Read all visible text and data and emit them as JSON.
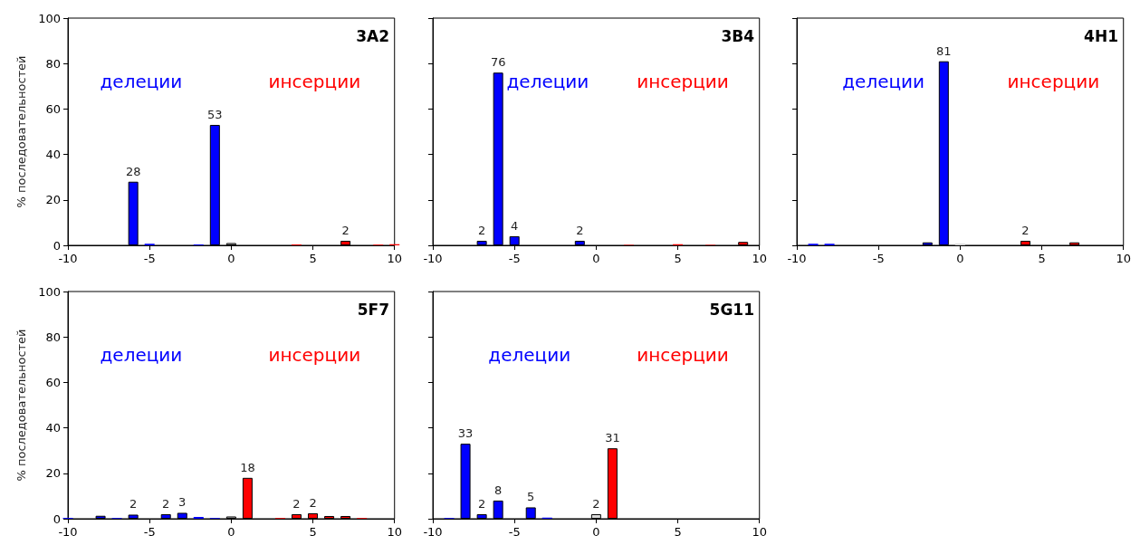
{
  "chart_data": [
    {
      "type": "bar",
      "title": "3A2",
      "ylabel": "% последовательностей",
      "annotations": [
        "делеции",
        "инсерции"
      ],
      "x": [
        -6,
        -5,
        -2,
        -1,
        0,
        4,
        7,
        9,
        10
      ],
      "values": [
        28,
        0.7,
        0.4,
        53,
        1,
        0.4,
        2,
        0.3,
        0.5
      ],
      "value_labels": [
        "28",
        null,
        null,
        "53",
        null,
        null,
        "2",
        null,
        null
      ],
      "colors": [
        "#0000ff",
        "#0000ff",
        "#0000ff",
        "#0000ff",
        "#d9d9d9",
        "#ff0000",
        "#ff0000",
        "#ff0000",
        "#ff0000"
      ],
      "xlim": [
        -10,
        10
      ],
      "xticks": [
        -10,
        -5,
        0,
        5,
        10
      ],
      "ylim": [
        0,
        100
      ],
      "yticks": [
        0,
        20,
        40,
        60,
        80,
        100
      ],
      "grid": false
    },
    {
      "type": "bar",
      "title": "3B4",
      "annotations": [
        "делеции",
        "инсерции"
      ],
      "x": [
        -7,
        -6,
        -5,
        -1,
        2,
        5,
        7,
        9
      ],
      "values": [
        2,
        76,
        4,
        2,
        0.2,
        0.5,
        0.2,
        1.5
      ],
      "value_labels": [
        "2",
        "76",
        "4",
        "2",
        null,
        null,
        null,
        null
      ],
      "colors": [
        "#0000ff",
        "#0000ff",
        "#0000ff",
        "#0000ff",
        "#ff0000",
        "#ff0000",
        "#ff0000",
        "#ff0000"
      ],
      "xlim": [
        -10,
        10
      ],
      "xticks": [
        -10,
        -5,
        0,
        5,
        10
      ],
      "ylim": [
        0,
        100
      ],
      "yticks": [
        0,
        20,
        40,
        60,
        80,
        100
      ],
      "grid": false,
      "tick_labels": "x"
    },
    {
      "type": "bar",
      "title": "4H1",
      "annotations": [
        "делеции",
        "инсерции"
      ],
      "x": [
        -9,
        -8,
        -2,
        -1,
        0,
        4,
        7
      ],
      "values": [
        0.7,
        0.7,
        1.3,
        81,
        0.8,
        2,
        1.3
      ],
      "value_labels": [
        null,
        null,
        null,
        "81",
        null,
        "2",
        null
      ],
      "colors": [
        "#0000ff",
        "#0000ff",
        "#0000ff",
        "#0000ff",
        "#d9d9d9",
        "#ff0000",
        "#ff0000"
      ],
      "xlim": [
        -10,
        10
      ],
      "xticks": [
        -10,
        -5,
        0,
        5,
        10
      ],
      "ylim": [
        0,
        100
      ],
      "yticks": [
        0,
        20,
        40,
        60,
        80,
        100
      ],
      "grid": false,
      "tick_labels": "x"
    },
    {
      "type": "bar",
      "title": "5F7",
      "ylabel": "% последовательностей",
      "annotations": [
        "делеции",
        "инсерции"
      ],
      "x": [
        -10,
        -8,
        -7,
        -6,
        -4,
        -3,
        -2,
        -1,
        0,
        1,
        3,
        4,
        5,
        6,
        7,
        8
      ],
      "values": [
        0.4,
        1.3,
        0.3,
        1.8,
        2,
        2.6,
        0.8,
        0.3,
        1,
        18,
        0.3,
        2,
        2.4,
        1.2,
        1.2,
        0.3
      ],
      "value_labels": [
        null,
        null,
        null,
        "2",
        "2",
        "3",
        null,
        null,
        null,
        "18",
        null,
        "2",
        "2",
        null,
        null,
        null
      ],
      "colors": [
        "#0000ff",
        "#0000ff",
        "#0000ff",
        "#0000ff",
        "#0000ff",
        "#0000ff",
        "#0000ff",
        "#0000ff",
        "#d9d9d9",
        "#ff0000",
        "#ff0000",
        "#ff0000",
        "#ff0000",
        "#ff0000",
        "#ff0000",
        "#ff0000"
      ],
      "xlim": [
        -10,
        10
      ],
      "xticks": [
        -10,
        -5,
        0,
        5,
        10
      ],
      "ylim": [
        0,
        100
      ],
      "yticks": [
        0,
        20,
        40,
        60,
        80,
        100
      ],
      "grid": false
    },
    {
      "type": "bar",
      "title": "5G11",
      "annotations": [
        "делеции",
        "инсерции"
      ],
      "x": [
        -9,
        -8,
        -7,
        -6,
        -4,
        -3,
        0,
        1
      ],
      "values": [
        0.3,
        33,
        2,
        8,
        5,
        0.5,
        2,
        31
      ],
      "value_labels": [
        null,
        "33",
        "2",
        "8",
        "5",
        null,
        "2",
        "31"
      ],
      "colors": [
        "#0000ff",
        "#0000ff",
        "#0000ff",
        "#0000ff",
        "#0000ff",
        "#0000ff",
        "#d9d9d9",
        "#ff0000"
      ],
      "xlim": [
        -10,
        10
      ],
      "xticks": [
        -10,
        -5,
        0,
        5,
        10
      ],
      "ylim": [
        0,
        100
      ],
      "yticks": [
        0,
        20,
        40,
        60,
        80,
        100
      ],
      "grid": false,
      "tick_labels": "x"
    }
  ]
}
